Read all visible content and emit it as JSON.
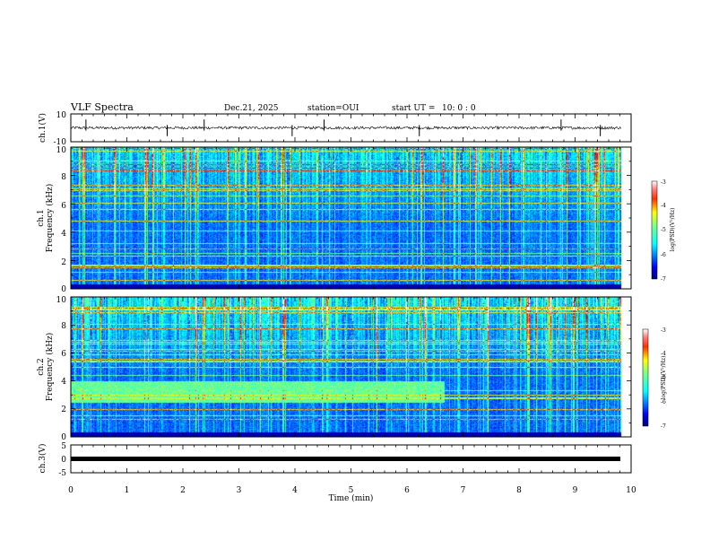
{
  "header": {
    "title": "VLF Spectra",
    "date": "Dec.21, 2025",
    "station": "station=OUI",
    "start_label": "start  UT =",
    "start_time": "10: 0  : 0"
  },
  "chart_data": [
    {
      "type": "line",
      "name": "ch1-waveform",
      "ylabel": "ch.1(V)",
      "ylim": [
        -10,
        10
      ],
      "yticks": [
        "10",
        "-10"
      ],
      "xlim": [
        0,
        10
      ],
      "baseline": 0,
      "noise_amplitude": 1,
      "spike_times_min": [
        0.27,
        1.72,
        2.38,
        3.95,
        4.52,
        6.22,
        8.75,
        9.45
      ]
    },
    {
      "type": "heatmap",
      "name": "ch1-spectrogram",
      "ylabel_line1": "ch.1",
      "ylabel_line2": "Frequency (kHz)",
      "ylim": [
        0,
        10
      ],
      "yticks": [
        "0",
        "2",
        "4",
        "6",
        "8",
        "10"
      ],
      "xlim": [
        0,
        10
      ],
      "data_end_min": 9.83,
      "colorbar": {
        "label": "log(PSD)(V²/Hz)",
        "range": [
          -7,
          -3
        ],
        "ticks": [
          "-3",
          "-4",
          "-5",
          "-6",
          "-7"
        ]
      }
    },
    {
      "type": "heatmap",
      "name": "ch2-spectrogram",
      "ylabel_line1": "ch.2",
      "ylabel_line2": "Frequency (kHz)",
      "ylim": [
        0,
        10
      ],
      "yticks": [
        "0",
        "2",
        "4",
        "6",
        "8",
        "10"
      ],
      "xlim": [
        0,
        10
      ],
      "data_end_min": 9.83,
      "band_kHz": [
        2.5,
        4.0
      ],
      "band_end_min": 6.67,
      "colorbar": {
        "label": "log(PSD)(V²/Hz)",
        "range": [
          -7,
          -3
        ],
        "ticks": [
          "-3",
          "-4",
          "-5",
          "-6",
          "-7"
        ]
      }
    },
    {
      "type": "line",
      "name": "ch3-waveform",
      "ylabel": "ch.3(V)",
      "ylim": [
        -5,
        5
      ],
      "yticks": [
        "5",
        "0",
        "-5"
      ],
      "xlim": [
        0,
        10
      ],
      "baseline": 0,
      "trace_width_V": 0.6
    }
  ],
  "time_axis": {
    "label": "Time (min)",
    "ticks": [
      "0",
      "1",
      "2",
      "3",
      "4",
      "5",
      "6",
      "7",
      "8",
      "9",
      "10"
    ]
  },
  "colors": {
    "colormap": [
      "#00007f",
      "#0000ff",
      "#007fff",
      "#00ffff",
      "#7fff7f",
      "#ffff00",
      "#ff7f00",
      "#ff0000",
      "#7f0000",
      "#ffffff"
    ]
  }
}
